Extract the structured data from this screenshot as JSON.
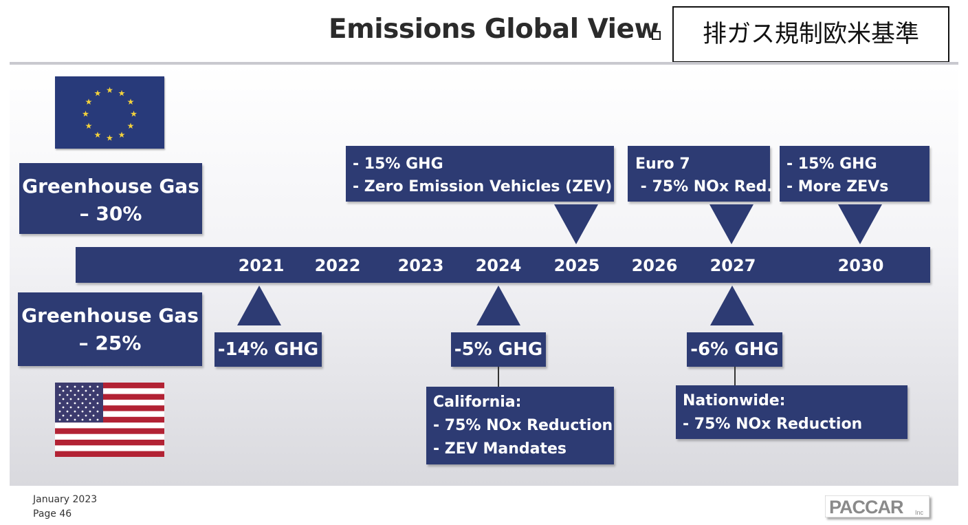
{
  "header": {
    "title": "Emissions Global View",
    "jp_label": "排ガス規制欧米基準"
  },
  "eu": {
    "flag_icon": "eu-flag-icon",
    "summary": [
      "Greenhouse Gas",
      "– 30%"
    ],
    "milestones": [
      {
        "year": "2025",
        "lines": [
          "- 15% GHG",
          "- Zero Emission Vehicles (ZEV)"
        ]
      },
      {
        "year": "2027",
        "lines": [
          "Euro 7",
          " - 75% NOx Red."
        ]
      },
      {
        "year": "2030",
        "lines": [
          "- 15% GHG",
          "- More ZEVs"
        ]
      }
    ]
  },
  "timeline": {
    "years": [
      "2021",
      "2022",
      "2023",
      "2024",
      "2025",
      "2026",
      "2027",
      "2030"
    ]
  },
  "us": {
    "flag_icon": "us-flag-icon",
    "summary": [
      "Greenhouse Gas",
      "– 25%"
    ],
    "milestones": [
      {
        "year": "2021",
        "label": "-14% GHG"
      },
      {
        "year": "2024",
        "label": "-5% GHG",
        "detail": [
          "California:",
          "- 75% NOx Reduction",
          "- ZEV Mandates"
        ]
      },
      {
        "year": "2027",
        "label": "-6% GHG",
        "detail": [
          "Nationwide:",
          "- 75% NOx Reduction"
        ]
      }
    ]
  },
  "footer": {
    "date": "January 2023",
    "page": "Page 46",
    "logo_text": "PACCAR",
    "logo_suffix": "Inc"
  },
  "colors": {
    "navy": "#2d3b73",
    "eu_blue": "#283a7a",
    "eu_star": "#f4d23c",
    "us_red": "#b22234",
    "us_blue": "#3c3b6e"
  }
}
